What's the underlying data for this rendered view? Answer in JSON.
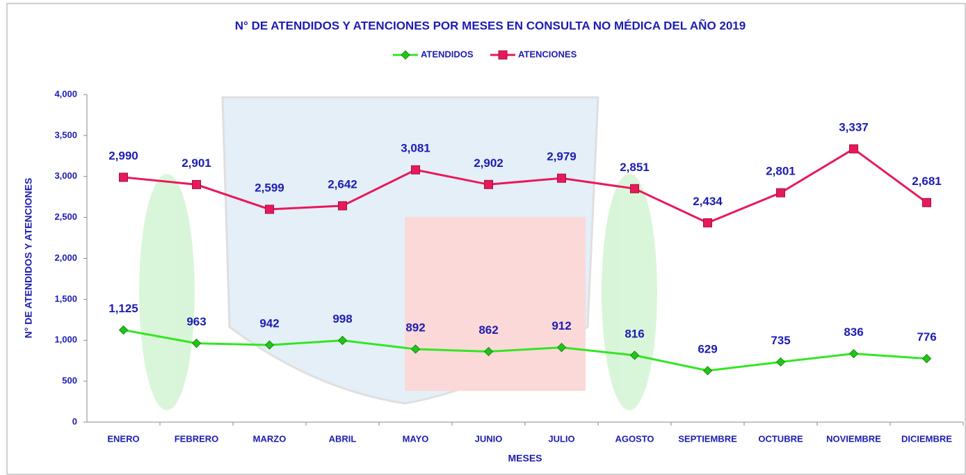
{
  "chart_data": {
    "type": "line",
    "title": "N° DE ATENDIDOS Y ATENCIONES POR MESES EN CONSULTA NO MÉDICA DEL AÑO 2019",
    "x_label": "MESES",
    "y_label": "N° DE ATENDIDOS Y ATENCIONES",
    "categories": [
      "ENERO",
      "FEBRERO",
      "MARZO",
      "ABRIL",
      "MAYO",
      "JUNIO",
      "JULIO",
      "AGOSTO",
      "SEPTIEMBRE",
      "OCTUBRE",
      "NOVIEMBRE",
      "DICIEMBRE"
    ],
    "series": [
      {
        "name": "ATENDIDOS",
        "color": "#33e622",
        "marker_color": "#22c41a",
        "marker": "diamond",
        "values": [
          1125,
          963,
          942,
          998,
          892,
          862,
          912,
          816,
          629,
          735,
          836,
          776
        ],
        "value_labels": [
          "1,125",
          "963",
          "942",
          "998",
          "892",
          "862",
          "912",
          "816",
          "629",
          "735",
          "836",
          "776"
        ]
      },
      {
        "name": "ATENCIONES",
        "color": "#e8195a",
        "marker_color": "#e8195a",
        "marker": "square",
        "values": [
          2990,
          2901,
          2599,
          2642,
          3081,
          2902,
          2979,
          2851,
          2434,
          2801,
          3337,
          2681
        ],
        "value_labels": [
          "2,990",
          "2,901",
          "2,599",
          "2,642",
          "3,081",
          "2,902",
          "2,979",
          "2,851",
          "2,434",
          "2,801",
          "3,337",
          "2,681"
        ]
      }
    ],
    "ylim": [
      0,
      4000
    ],
    "yticks": [
      0,
      500,
      {
        "value": 1000,
        "label": "1,000"
      },
      {
        "value": 1500,
        "label": "1,500"
      },
      {
        "value": 2000,
        "label": "2,000"
      },
      {
        "value": 2500,
        "label": "2,500"
      },
      {
        "value": 3000,
        "label": "3,000"
      },
      {
        "value": 3500,
        "label": "3,500"
      },
      {
        "value": 4000,
        "label": "4,000"
      }
    ],
    "legend": "top"
  }
}
